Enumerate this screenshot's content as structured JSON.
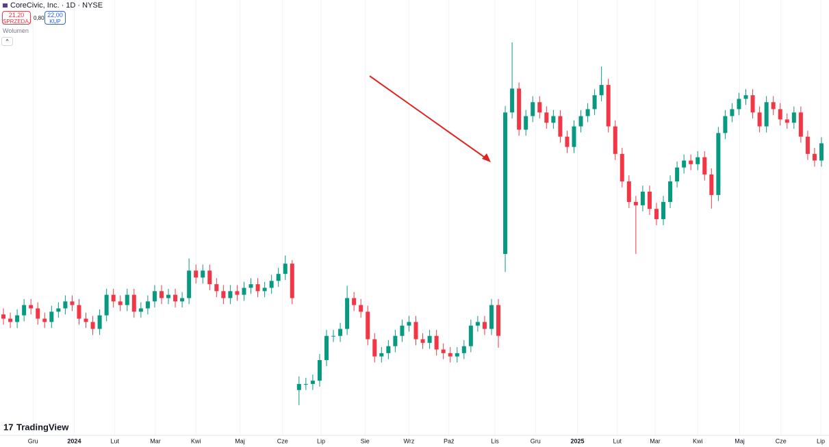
{
  "header": {
    "title": "CoreCivic, Inc. · 1D · NYSE",
    "sell_price": "21,20",
    "sell_label": "SPRZEDAJ",
    "spread": "0,80",
    "buy_price": "22,00",
    "buy_label": "KUP",
    "volume": "Wolumen",
    "logo": "TradingView"
  },
  "chart_data": {
    "type": "candlestick",
    "up_color": "#089981",
    "down_color": "#f23645",
    "grid": true,
    "xlim": [
      -0.5,
      119.5
    ],
    "ylim": [
      11.5,
      25.9
    ],
    "xticks": [
      {
        "value": 4.3,
        "label": "Gru"
      },
      {
        "value": 10.3,
        "label": "2024"
      },
      {
        "value": 16.2,
        "label": "Lut"
      },
      {
        "value": 22.1,
        "label": "Mar"
      },
      {
        "value": 28,
        "label": "Kwi"
      },
      {
        "value": 34.4,
        "label": "Maj"
      },
      {
        "value": 40.6,
        "label": "Cze"
      },
      {
        "value": 46.2,
        "label": "Lip"
      },
      {
        "value": 52.6,
        "label": "Sie"
      },
      {
        "value": 59,
        "label": "Wrz"
      },
      {
        "value": 64.8,
        "label": "Paź"
      },
      {
        "value": 71.5,
        "label": "Lis"
      },
      {
        "value": 77.4,
        "label": "Gru"
      },
      {
        "value": 83.5,
        "label": "2025"
      },
      {
        "value": 89.3,
        "label": "Lut"
      },
      {
        "value": 94.8,
        "label": "Mar"
      },
      {
        "value": 101,
        "label": "Kwi"
      },
      {
        "value": 107.1,
        "label": "Maj"
      },
      {
        "value": 113.1,
        "label": "Cze"
      },
      {
        "value": 118.9,
        "label": "Lip"
      }
    ],
    "open": [
      15.5,
      15.36,
      15.25,
      15.47,
      15.81,
      15.7,
      15.36,
      15.25,
      15.59,
      15.7,
      15.93,
      15.81,
      15.36,
      15.25,
      15.02,
      15.47,
      16.15,
      15.93,
      15.81,
      16.15,
      15.59,
      15.7,
      15.93,
      16.27,
      16.04,
      16.15,
      15.93,
      16.04,
      16.95,
      16.72,
      16.95,
      16.5,
      16.27,
      16.04,
      16.27,
      16.15,
      16.38,
      16.5,
      16.27,
      16.38,
      16.61,
      16.84,
      17.18,
      13.0,
      13.2,
      13.2,
      13.31,
      13.99,
      14.79,
      14.79,
      15.02,
      16.04,
      15.81,
      15.59,
      14.68,
      14.11,
      14.22,
      14.45,
      14.79,
      15.13,
      15.25,
      14.68,
      14.56,
      14.79,
      14.34,
      14.22,
      14.11,
      14.22,
      14.45,
      15.13,
      15.25,
      15.02,
      15.81,
      17.5,
      22.18,
      22.97,
      21.61,
      22.06,
      22.52,
      22.18,
      21.84,
      22.06,
      21.38,
      21.04,
      21.72,
      22.06,
      22.29,
      22.75,
      23.09,
      21.72,
      20.81,
      19.9,
      19.22,
      19.11,
      19.56,
      18.99,
      18.65,
      19.22,
      19.9,
      20.36,
      20.59,
      20.47,
      20.7,
      20.13,
      19.45,
      21.5,
      22.06,
      22.29,
      22.63,
      22.75,
      22.18,
      21.72,
      22.52,
      22.29,
      21.95,
      21.84,
      22.18,
      21.38,
      20.81,
      20.59
    ],
    "high": [
      15.7,
      15.56,
      15.67,
      16.01,
      16.01,
      15.9,
      15.56,
      15.79,
      15.9,
      16.13,
      16.13,
      16.01,
      15.56,
      15.45,
      15.67,
      16.35,
      16.35,
      16.13,
      16.35,
      16.35,
      15.9,
      16.13,
      16.47,
      16.47,
      16.35,
      16.35,
      16.24,
      17.35,
      17.15,
      17.15,
      17.15,
      16.7,
      16.47,
      16.47,
      16.47,
      16.58,
      16.7,
      16.7,
      16.58,
      16.81,
      17.04,
      17.45,
      17.3,
      13.45,
      13.4,
      13.51,
      14.19,
      14.99,
      14.99,
      15.22,
      16.45,
      16.24,
      16.01,
      15.79,
      14.88,
      14.42,
      14.65,
      14.99,
      15.33,
      15.45,
      15.45,
      14.88,
      14.99,
      14.99,
      14.54,
      14.42,
      14.42,
      14.65,
      15.33,
      15.45,
      15.45,
      16.01,
      16.01,
      22.4,
      24.5,
      23.17,
      22.26,
      22.72,
      22.72,
      22.38,
      22.26,
      22.26,
      21.58,
      21.92,
      22.26,
      22.49,
      22.95,
      23.7,
      23.29,
      21.92,
      21.01,
      20.1,
      19.42,
      19.76,
      19.76,
      19.19,
      19.42,
      20.1,
      20.56,
      20.79,
      20.79,
      20.9,
      20.9,
      20.33,
      21.7,
      22.26,
      22.49,
      22.83,
      22.95,
      22.95,
      22.38,
      22.72,
      22.72,
      22.49,
      22.15,
      22.38,
      22.38,
      21.58,
      21.01,
      21.36
    ],
    "low": [
      15.16,
      15.05,
      15.05,
      15.27,
      15.5,
      15.16,
      15.05,
      15.05,
      15.39,
      15.5,
      15.61,
      15.16,
      15.05,
      14.82,
      14.82,
      15.27,
      15.73,
      15.61,
      15.61,
      15.39,
      15.39,
      15.5,
      15.73,
      15.84,
      15.84,
      15.73,
      15.73,
      15.84,
      16.52,
      16.52,
      16.3,
      16.07,
      15.84,
      15.84,
      15.95,
      15.95,
      16.18,
      16.07,
      16.07,
      16.18,
      16.41,
      16.64,
      15.84,
      12.5,
      13.0,
      13.0,
      13.11,
      13.79,
      14.59,
      14.59,
      14.82,
      15.61,
      15.39,
      14.48,
      13.91,
      13.91,
      14.02,
      14.25,
      14.59,
      14.93,
      14.48,
      14.36,
      14.36,
      14.14,
      14.02,
      13.91,
      13.91,
      14.02,
      14.25,
      14.93,
      14.82,
      14.82,
      14.4,
      16.9,
      21.98,
      21.41,
      21.41,
      21.86,
      21.98,
      21.64,
      21.64,
      21.18,
      20.84,
      20.84,
      21.52,
      21.86,
      22.09,
      22.55,
      21.52,
      20.61,
      19.7,
      19.02,
      17.5,
      18.91,
      18.79,
      18.45,
      18.45,
      19.02,
      19.7,
      20.16,
      20.27,
      20.27,
      19.93,
      19.0,
      19.25,
      21.3,
      21.86,
      22.09,
      22.43,
      21.98,
      21.52,
      21.52,
      22.09,
      21.75,
      21.64,
      21.64,
      21.18,
      20.61,
      20.39,
      20.39
    ],
    "close": [
      15.36,
      15.25,
      15.47,
      15.81,
      15.7,
      15.36,
      15.25,
      15.59,
      15.7,
      15.93,
      15.81,
      15.36,
      15.25,
      15.02,
      15.47,
      16.15,
      15.93,
      15.81,
      16.15,
      15.59,
      15.7,
      15.93,
      16.27,
      16.04,
      16.15,
      15.93,
      16.04,
      16.95,
      16.72,
      16.95,
      16.5,
      16.27,
      16.04,
      16.27,
      16.15,
      16.38,
      16.5,
      16.27,
      16.38,
      16.61,
      16.84,
      17.18,
      16.04,
      13.2,
      13.2,
      13.31,
      13.99,
      14.79,
      14.79,
      15.02,
      16.04,
      15.81,
      15.59,
      14.68,
      14.11,
      14.22,
      14.45,
      14.79,
      15.13,
      15.25,
      14.68,
      14.56,
      14.79,
      14.34,
      14.22,
      14.11,
      14.22,
      14.45,
      15.13,
      15.25,
      15.02,
      15.81,
      14.79,
      22.18,
      22.97,
      21.61,
      22.06,
      22.52,
      22.18,
      21.84,
      22.06,
      21.38,
      21.04,
      21.72,
      22.06,
      22.29,
      22.75,
      23.09,
      21.72,
      20.81,
      19.9,
      19.22,
      19.11,
      19.56,
      18.99,
      18.65,
      19.22,
      19.9,
      20.36,
      20.59,
      20.47,
      20.7,
      20.13,
      19.45,
      21.5,
      22.06,
      22.29,
      22.63,
      22.75,
      22.18,
      21.72,
      22.52,
      22.29,
      21.95,
      21.84,
      22.18,
      21.38,
      20.81,
      20.59,
      21.16
    ]
  }
}
